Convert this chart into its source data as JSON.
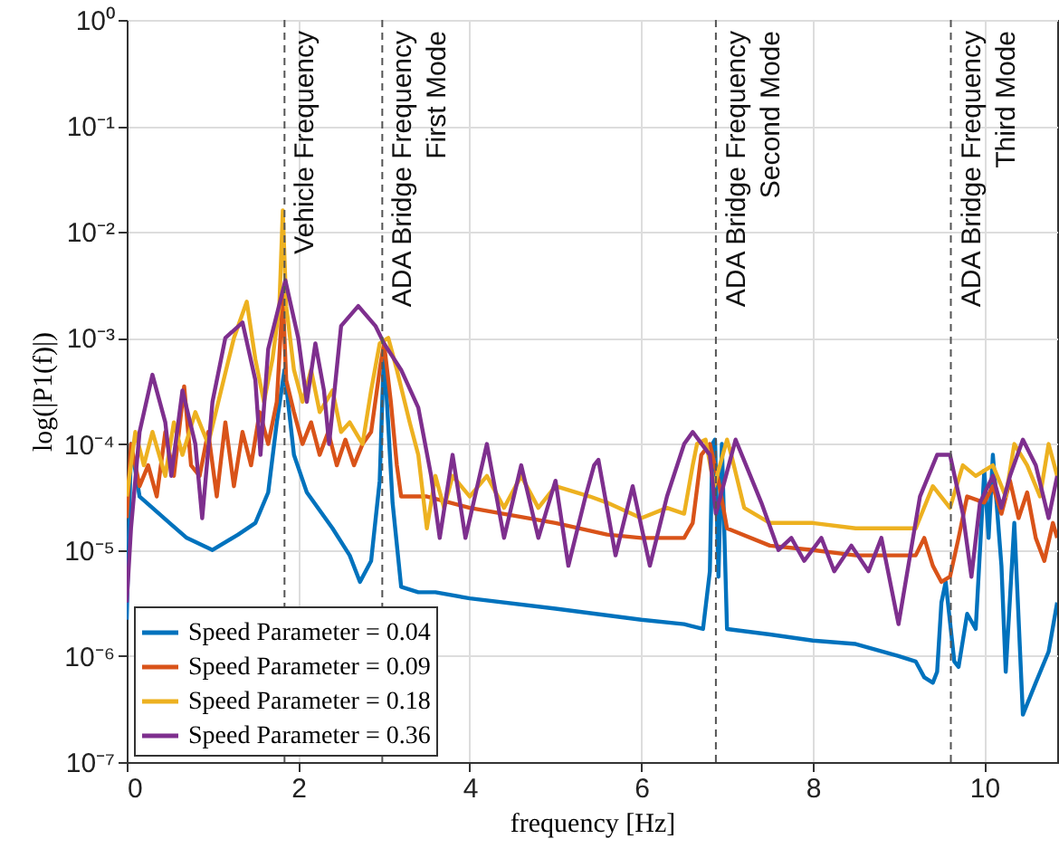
{
  "chart_data": {
    "type": "line",
    "xlabel": "frequency [Hz]",
    "ylabel": "log(|P1(f)|)",
    "xlim": [
      0,
      10.85
    ],
    "xticks": [
      0,
      2,
      4,
      6,
      8,
      10
    ],
    "ylim": [
      1e-07,
      1
    ],
    "log": true,
    "yticks": [
      {
        "value": 1e-07,
        "label": "10⁻⁷"
      },
      {
        "value": 1e-06,
        "label": "10⁻⁶"
      },
      {
        "value": 1e-05,
        "label": "10⁻⁵"
      },
      {
        "value": 0.0001,
        "label": "10⁻⁴"
      },
      {
        "value": 0.001,
        "label": "10⁻³"
      },
      {
        "value": 0.01,
        "label": "10⁻²"
      },
      {
        "value": 0.1,
        "label": "10⁻¹"
      },
      {
        "value": 1,
        "label": "10⁰"
      }
    ],
    "grid": true,
    "legend": "bottom left",
    "line_style": "solid",
    "marker": "none",
    "series": [
      {
        "name": "Speed Parameter = 0.04",
        "color": "#0072bd",
        "x": [
          0,
          0.05,
          0.15,
          0.3,
          0.5,
          0.7,
          1.0,
          1.3,
          1.5,
          1.65,
          1.75,
          1.84,
          1.95,
          2.1,
          2.4,
          2.6,
          2.72,
          2.85,
          2.95,
          3.0,
          3.1,
          3.2,
          3.4,
          3.6,
          4.0,
          5.0,
          6.0,
          6.5,
          6.72,
          6.8,
          6.83,
          6.86,
          6.9,
          6.94,
          7.0,
          7.5,
          8.0,
          8.5,
          9.0,
          9.2,
          9.3,
          9.4,
          9.45,
          9.5,
          9.55,
          9.65,
          9.7,
          9.8,
          9.9,
          10.0,
          10.05,
          10.1,
          10.2,
          10.25,
          10.35,
          10.45,
          10.6,
          10.75,
          10.85
        ],
        "values": [
          2.2e-06,
          0.0001,
          3.2e-05,
          2.5e-05,
          1.8e-05,
          1.3e-05,
          1e-05,
          1.4e-05,
          1.8e-05,
          3.5e-05,
          0.00016,
          0.0005,
          7.9e-05,
          3.5e-05,
          1.6e-05,
          8.9e-06,
          5e-06,
          7.9e-06,
          4.5e-05,
          0.00079,
          2.8e-05,
          4.5e-06,
          4e-06,
          4e-06,
          3.5e-06,
          2.8e-06,
          2.2e-06,
          2e-06,
          1.8e-06,
          6.3e-06,
          0.0001,
          0.00011,
          5.6e-06,
          0.0001,
          1.8e-06,
          1.6e-06,
          1.4e-06,
          1.3e-06,
          1e-06,
          8.9e-07,
          6.3e-07,
          5.6e-07,
          7.1e-07,
          3.2e-06,
          5e-06,
          8.9e-07,
          7.9e-07,
          2.5e-06,
          1.8e-06,
          5.6e-05,
          1.3e-05,
          7.9e-05,
          7.1e-06,
          7.1e-07,
          1.8e-05,
          2.8e-07,
          5.6e-07,
          1.1e-06,
          3.2e-06
        ]
      },
      {
        "name": "Speed Parameter = 0.09",
        "color": "#d95319",
        "x": [
          0,
          0.05,
          0.15,
          0.25,
          0.35,
          0.45,
          0.55,
          0.67,
          0.75,
          0.85,
          0.95,
          1.05,
          1.15,
          1.25,
          1.35,
          1.45,
          1.55,
          1.65,
          1.75,
          1.82,
          1.86,
          1.95,
          2.05,
          2.15,
          2.25,
          2.35,
          2.45,
          2.55,
          2.65,
          2.75,
          2.85,
          2.95,
          3.0,
          3.08,
          3.15,
          3.2,
          3.5,
          4.0,
          5.0,
          5.6,
          6.0,
          6.5,
          6.6,
          6.7,
          6.8,
          6.9,
          7.0,
          7.5,
          8.0,
          8.5,
          9.0,
          9.2,
          9.3,
          9.4,
          9.5,
          9.6,
          9.7,
          9.8,
          10.0,
          10.1,
          10.2,
          10.3,
          10.4,
          10.5,
          10.6,
          10.7,
          10.8,
          10.85
        ],
        "values": [
          2e-05,
          0.0001,
          4e-05,
          6.3e-05,
          3.2e-05,
          0.00013,
          5e-05,
          0.00035,
          6.3e-05,
          5e-05,
          0.00013,
          3.2e-05,
          0.00016,
          4e-05,
          0.00013,
          6.3e-05,
          0.0002,
          0.0001,
          0.00025,
          0.0025,
          0.0004,
          0.0002,
          0.0001,
          0.00016,
          7.9e-05,
          0.00013,
          6.3e-05,
          0.00011,
          6.3e-05,
          0.0001,
          0.00013,
          0.0005,
          0.00089,
          0.00025,
          6.3e-05,
          3.2e-05,
          3.2e-05,
          2.5e-05,
          1.8e-05,
          1.4e-05,
          1.3e-05,
          1.3e-05,
          1.8e-05,
          7.9e-05,
          0.0001,
          4.5e-05,
          1.6e-05,
          1.1e-05,
          1e-05,
          8.9e-06,
          8.9e-06,
          8.9e-06,
          1.3e-05,
          7.1e-06,
          5e-06,
          5.6e-06,
          1.3e-05,
          3.2e-05,
          2.8e-05,
          4e-05,
          2.2e-05,
          4.5e-05,
          2e-05,
          3.5e-05,
          1.3e-05,
          7.9e-06,
          1.8e-05,
          1.3e-05
        ]
      },
      {
        "name": "Speed Parameter = 0.18",
        "color": "#edb120",
        "x": [
          0,
          0.1,
          0.2,
          0.3,
          0.45,
          0.55,
          0.65,
          0.8,
          0.95,
          1.1,
          1.25,
          1.4,
          1.5,
          1.6,
          1.7,
          1.78,
          1.82,
          1.86,
          1.95,
          2.05,
          2.15,
          2.25,
          2.4,
          2.5,
          2.6,
          2.75,
          2.85,
          2.95,
          3.05,
          3.15,
          3.3,
          3.4,
          3.5,
          3.6,
          3.7,
          3.8,
          4.0,
          4.2,
          4.4,
          4.6,
          4.8,
          5.0,
          5.4,
          5.6,
          6.0,
          6.3,
          6.5,
          6.6,
          6.65,
          6.75,
          6.85,
          7.0,
          7.05,
          7.2,
          7.5,
          8.0,
          8.5,
          9.0,
          9.2,
          9.4,
          9.6,
          9.75,
          9.9,
          10.1,
          10.25,
          10.35,
          10.5,
          10.65,
          10.75,
          10.85
        ],
        "values": [
          3.2e-05,
          0.00013,
          6.3e-05,
          0.00013,
          5e-05,
          0.00016,
          7.9e-05,
          0.0002,
          0.0001,
          0.00032,
          0.001,
          0.0022,
          0.00063,
          0.00025,
          0.00063,
          0.002,
          0.016,
          0.002,
          0.0005,
          0.00025,
          0.0005,
          0.0002,
          0.00032,
          0.00013,
          0.00016,
          0.0001,
          0.00032,
          0.00089,
          0.001,
          0.0005,
          0.00016,
          7.9e-05,
          1.6e-05,
          5e-05,
          2.5e-05,
          5e-05,
          3.2e-05,
          5e-05,
          2.5e-05,
          5e-05,
          2.5e-05,
          4e-05,
          3.2e-05,
          2.8e-05,
          2e-05,
          2.5e-05,
          2.2e-05,
          6.3e-05,
          0.0001,
          0.00011,
          4e-05,
          0.00011,
          7.9e-05,
          2.5e-05,
          1.8e-05,
          1.8e-05,
          1.6e-05,
          1.6e-05,
          1.6e-05,
          4e-05,
          2.5e-05,
          6.3e-05,
          5e-05,
          6.3e-05,
          3.2e-05,
          0.0001,
          6.3e-05,
          3.2e-05,
          0.0001,
          5e-05
        ]
      },
      {
        "name": "Speed Parameter = 0.36",
        "color": "#7e2f8e",
        "x": [
          0,
          0.05,
          0.15,
          0.3,
          0.45,
          0.52,
          0.65,
          0.8,
          0.88,
          1.0,
          1.15,
          1.35,
          1.5,
          1.56,
          1.65,
          1.85,
          2.0,
          2.1,
          2.2,
          2.3,
          2.36,
          2.5,
          2.7,
          2.9,
          3.0,
          3.2,
          3.4,
          3.55,
          3.65,
          3.8,
          3.95,
          4.2,
          4.4,
          4.6,
          4.8,
          5.0,
          5.15,
          5.35,
          5.45,
          5.5,
          5.7,
          5.9,
          6.1,
          6.3,
          6.5,
          6.6,
          6.8,
          6.87,
          7.1,
          7.4,
          7.6,
          7.75,
          7.9,
          8.1,
          8.25,
          8.45,
          8.65,
          8.8,
          9.0,
          9.25,
          9.45,
          9.6,
          9.75,
          9.85,
          9.95,
          10.1,
          10.2,
          10.3,
          10.45,
          10.6,
          10.75,
          10.85
        ],
        "values": [
          3.2e-06,
          1.6e-05,
          0.00013,
          0.00045,
          0.00016,
          5e-05,
          0.00032,
          0.0001,
          2e-05,
          0.00025,
          0.001,
          0.0014,
          0.0004,
          7.9e-05,
          0.00079,
          0.0035,
          0.001,
          0.00025,
          0.00089,
          0.00032,
          0.0001,
          0.0013,
          0.002,
          0.0013,
          0.00089,
          0.0005,
          0.00022,
          5e-05,
          1.3e-05,
          7.9e-05,
          1.3e-05,
          0.0001,
          1.3e-05,
          6.3e-05,
          1.3e-05,
          4.5e-05,
          7.1e-06,
          3.2e-05,
          6.3e-05,
          7.1e-05,
          8.9e-06,
          4e-05,
          7.1e-06,
          3.2e-05,
          0.0001,
          0.00013,
          7.9e-05,
          2.2e-05,
          0.00011,
          2.8e-05,
          1e-05,
          1.3e-05,
          7.9e-06,
          1.3e-05,
          6.3e-06,
          1.1e-05,
          6.3e-06,
          1.3e-05,
          2e-06,
          3.2e-05,
          7.9e-05,
          7.9e-05,
          2.2e-05,
          5.6e-06,
          2.8e-05,
          5e-05,
          2.5e-05,
          5e-05,
          0.00011,
          6.3e-05,
          2e-05,
          5e-05
        ]
      }
    ],
    "ref_lines": [
      {
        "axis": "x",
        "value": 1.84,
        "label": "Vehicle Frequency",
        "color": "#555555",
        "line_style": "dashed"
      },
      {
        "axis": "x",
        "value": 2.98,
        "label": "ADA Bridge Frequency\nFirst Mode",
        "color": "#555555",
        "line_style": "dashed"
      },
      {
        "axis": "x",
        "value": 6.87,
        "label": "ADA Bridge Frequency\nSecond Mode",
        "color": "#555555",
        "line_style": "dashed"
      },
      {
        "axis": "x",
        "value": 9.61,
        "label": "ADA Bridge Frequency\nThird Mode",
        "color": "#555555",
        "line_style": "dashed"
      }
    ]
  }
}
